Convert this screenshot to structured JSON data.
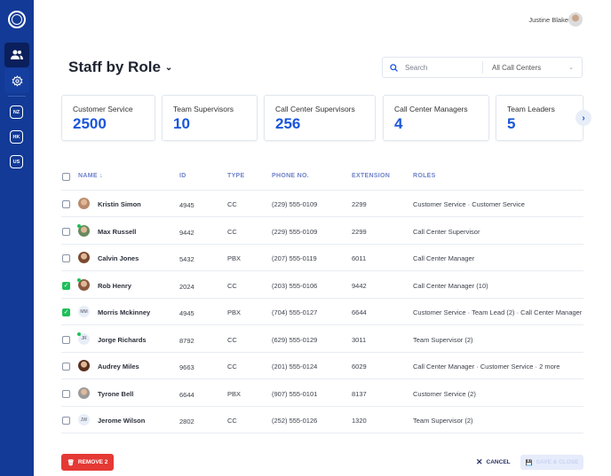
{
  "sidebar": {
    "items": [
      {
        "icon": "people-icon",
        "label": "Staff"
      },
      {
        "icon": "gear-icon",
        "label": "Settings"
      }
    ],
    "regions": [
      "NZ",
      "HK",
      "US"
    ]
  },
  "header": {
    "user_name": "Justine Blake"
  },
  "page": {
    "title": "Staff by Role"
  },
  "search": {
    "placeholder": "Search",
    "filter": "All Call Centers"
  },
  "cards": [
    {
      "label": "Customer Service",
      "value": "2500"
    },
    {
      "label": "Team Supervisors",
      "value": "10"
    },
    {
      "label": "Call Center Supervisors",
      "value": "256"
    },
    {
      "label": "Call Center Managers",
      "value": "4"
    },
    {
      "label": "Team Leaders",
      "value": "5"
    }
  ],
  "table": {
    "columns": [
      "NAME",
      "ID",
      "TYPE",
      "PHONE NO.",
      "EXTENSION",
      "ROLES"
    ],
    "rows": [
      {
        "name": "Kristin Simon",
        "id": "4945",
        "type": "CC",
        "phone": "(229) 555-0109",
        "ext": "2299",
        "roles": "Customer Service · Customer Service",
        "checked": false,
        "avatar": "photo",
        "online": false
      },
      {
        "name": "Max Russell",
        "id": "9442",
        "type": "CC",
        "phone": "(229) 555-0109",
        "ext": "2299",
        "roles": "Call Center Supervisor",
        "checked": false,
        "avatar": "photo",
        "online": true
      },
      {
        "name": "Calvin Jones",
        "id": "5432",
        "type": "PBX",
        "phone": "(207) 555-0119",
        "ext": "6011",
        "roles": "Call Center Manager",
        "checked": false,
        "avatar": "photo",
        "online": false
      },
      {
        "name": "Rob Henry",
        "id": "2024",
        "type": "CC",
        "phone": "(203) 555-0106",
        "ext": "9442",
        "roles": "Call Center Manager (10)",
        "checked": true,
        "avatar": "photo",
        "online": true
      },
      {
        "name": "Morris Mckinney",
        "id": "4945",
        "type": "PBX",
        "phone": "(704) 555-0127",
        "ext": "6644",
        "roles": "Customer Service · Team Lead (2) · Call Center Manager",
        "checked": true,
        "avatar": "MM",
        "online": false
      },
      {
        "name": "Jorge Richards",
        "id": "8792",
        "type": "CC",
        "phone": "(629) 555-0129",
        "ext": "3011",
        "roles": "Team Supervisor (2)",
        "checked": false,
        "avatar": "JR",
        "online": true
      },
      {
        "name": "Audrey Miles",
        "id": "9663",
        "type": "CC",
        "phone": "(201) 555-0124",
        "ext": "6029",
        "roles": "Call Center Manager · Customer Service · 2 more",
        "checked": false,
        "avatar": "photo",
        "online": false
      },
      {
        "name": "Tyrone Bell",
        "id": "6644",
        "type": "PBX",
        "phone": "(907) 555-0101",
        "ext": "8137",
        "roles": "Customer Service (2)",
        "checked": false,
        "avatar": "photo",
        "online": false
      },
      {
        "name": "Jerome Wilson",
        "id": "2802",
        "type": "CC",
        "phone": "(252) 555-0126",
        "ext": "1320",
        "roles": "Team Supervisor (2)",
        "checked": false,
        "avatar": "JW",
        "online": false
      }
    ]
  },
  "footer": {
    "remove": "REMOVE 2",
    "cancel": "CANCEL",
    "save": "SAVE & CLOSE"
  },
  "colors": {
    "sidebar": "#123a96",
    "accent": "#1a56db",
    "danger": "#e53935",
    "success": "#1fbf5a"
  }
}
